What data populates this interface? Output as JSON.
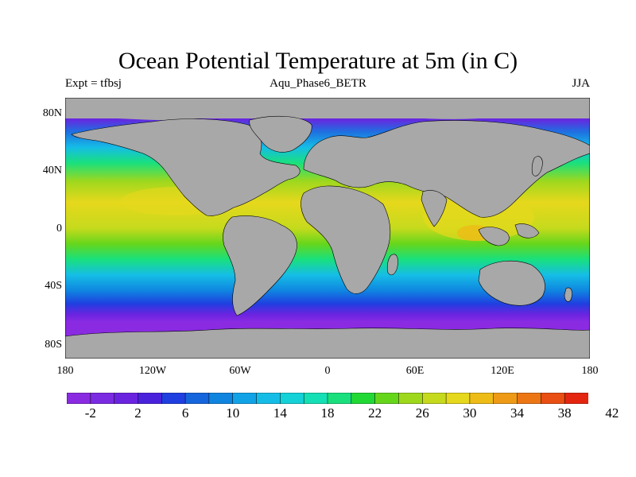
{
  "title": "Ocean Potential Temperature at 5m (in C)",
  "subtitle_left": "Expt = tfbsj",
  "subtitle_center": "Aqu_Phase6_BETR",
  "subtitle_right": "JJA",
  "lat_labels": [
    "80N",
    "40N",
    "0",
    "40S",
    "80S"
  ],
  "lon_labels": [
    "180",
    "120W",
    "60W",
    "0",
    "60E",
    "120E",
    "180"
  ],
  "colorbar": {
    "labels": [
      "-2",
      "2",
      "6",
      "10",
      "14",
      "18",
      "22",
      "26",
      "30",
      "34",
      "38",
      "42"
    ],
    "colors": [
      "#8a2be2",
      "#7b2be2",
      "#6a24e0",
      "#4a22dc",
      "#1f3fe0",
      "#1565dc",
      "#0f85e0",
      "#11a3e6",
      "#15bde6",
      "#14d2d8",
      "#15dfb4",
      "#19e07d",
      "#22d835",
      "#66d61b",
      "#9ed81d",
      "#c6da1d",
      "#e6d81c",
      "#eebc17",
      "#ee9a16",
      "#ec7614",
      "#e94e12",
      "#e4250f"
    ]
  },
  "colors": {
    "land": "#a8a8a8",
    "sea_ice": "#8a2be2"
  }
}
